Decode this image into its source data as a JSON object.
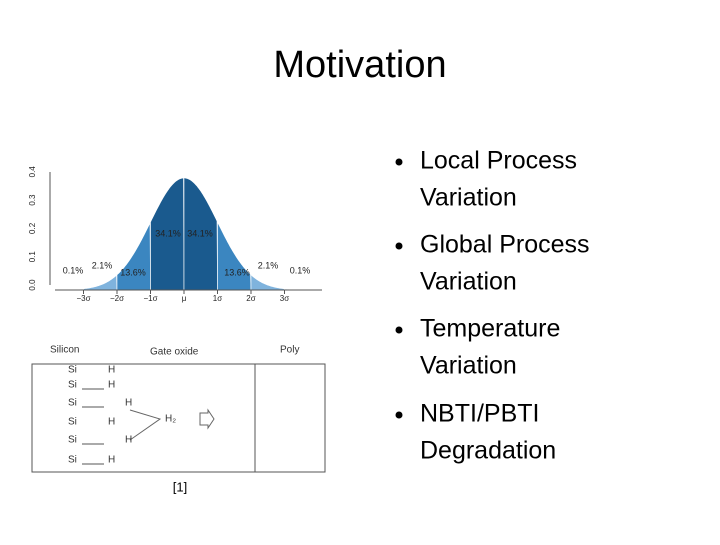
{
  "title": "Motivation",
  "bullets": [
    [
      "Local Process",
      "Variation"
    ],
    [
      "Global Process",
      "Variation"
    ],
    [
      "Temperature",
      "Variation"
    ],
    [
      "NBTI/PBTI",
      "Degradation"
    ]
  ],
  "figure": {
    "y_labels": [
      "0.0",
      "0.1",
      "0.2",
      "0.3",
      "0.4"
    ],
    "x_labels": [
      "−3σ",
      "−2σ",
      "−1σ",
      "μ",
      "1σ",
      "2σ",
      "3σ"
    ],
    "region_labels": [
      "0.1%",
      "2.1%",
      "13.6%",
      "34.1%",
      "34.1%",
      "13.6%",
      "2.1%",
      "0.1%"
    ]
  },
  "diagram": {
    "headers": [
      "Silicon",
      "Gate oxide",
      "Poly"
    ],
    "atoms": [
      "Si",
      "Si",
      "Si",
      "Si",
      "Si",
      "Si"
    ],
    "hydrogens": [
      "H",
      "H",
      "H",
      "H",
      "H",
      "H"
    ],
    "molecule": "H₂"
  },
  "citation": "[1]"
}
